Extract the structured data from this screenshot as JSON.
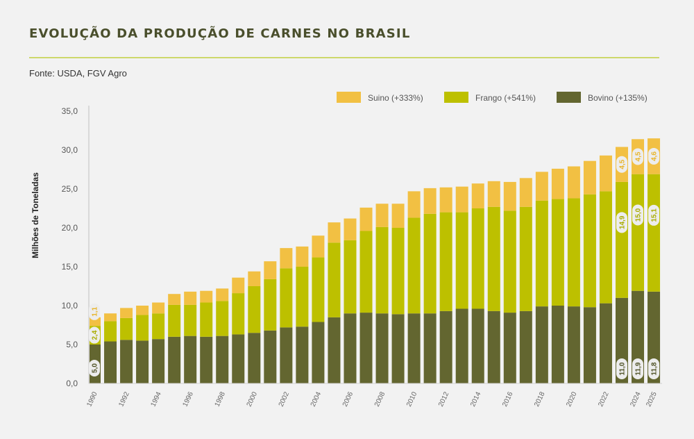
{
  "title": "EVOLUÇÃO DA PRODUÇÃO DE CARNES NO BRASIL",
  "source": "Fonte: USDA, FGV Agro",
  "chart_data": {
    "type": "bar",
    "stacked": true,
    "ylabel": "Milhões  de Toneladas",
    "xlabel": "",
    "ylim": [
      0,
      35
    ],
    "yticks": [
      "0,0",
      "5,0",
      "10,0",
      "15,0",
      "20,0",
      "25,0",
      "30,0",
      "35,0"
    ],
    "grid": false,
    "legend_position": "top-right",
    "categories": [
      1990,
      1991,
      1992,
      1993,
      1994,
      1995,
      1996,
      1997,
      1998,
      1999,
      2000,
      2001,
      2002,
      2003,
      2004,
      2005,
      2006,
      2007,
      2008,
      2009,
      2010,
      2011,
      2012,
      2013,
      2014,
      2015,
      2016,
      2017,
      2018,
      2019,
      2020,
      2021,
      2022,
      2023,
      2024,
      2025
    ],
    "xtick_labels": [
      "1990",
      "1992",
      "1994",
      "1996",
      "1998",
      "2000",
      "2002",
      "2004",
      "2006",
      "2008",
      "2010",
      "2012",
      "2014",
      "2016",
      "2018",
      "2020",
      "2022",
      "2024",
      "2025"
    ],
    "series": [
      {
        "name": "Bovino (+135%)",
        "color": "#636630",
        "label_color": "#4f5226",
        "values": [
          5.0,
          5.4,
          5.6,
          5.5,
          5.7,
          6.0,
          6.1,
          6.0,
          6.1,
          6.3,
          6.5,
          6.8,
          7.2,
          7.3,
          7.9,
          8.5,
          9.0,
          9.1,
          9.0,
          8.9,
          9.0,
          9.0,
          9.3,
          9.6,
          9.6,
          9.3,
          9.1,
          9.3,
          9.9,
          10.0,
          9.9,
          9.8,
          10.3,
          11.0,
          11.9,
          11.8
        ]
      },
      {
        "name": "Frango (+541%)",
        "color": "#bdc000",
        "label_color": "#a9ac00",
        "values": [
          2.4,
          2.6,
          2.8,
          3.3,
          3.3,
          4.1,
          4.0,
          4.4,
          4.5,
          5.3,
          6.0,
          6.6,
          7.6,
          7.7,
          8.3,
          9.6,
          9.4,
          10.5,
          11.1,
          11.1,
          12.3,
          12.8,
          12.7,
          12.4,
          12.9,
          13.4,
          13.1,
          13.4,
          13.6,
          13.7,
          13.9,
          14.5,
          14.4,
          14.9,
          15.0,
          15.1
        ]
      },
      {
        "name": "Suino (+333%)",
        "color": "#f2c043",
        "label_color": "#e8b52c",
        "values": [
          1.1,
          1.0,
          1.3,
          1.2,
          1.4,
          1.4,
          1.7,
          1.5,
          1.6,
          2.0,
          1.9,
          2.3,
          2.6,
          2.6,
          2.8,
          2.6,
          2.8,
          3.0,
          3.0,
          3.1,
          3.4,
          3.3,
          3.2,
          3.3,
          3.2,
          3.3,
          3.7,
          3.7,
          3.7,
          3.9,
          4.1,
          4.3,
          4.6,
          4.5,
          4.5,
          4.6
        ]
      }
    ],
    "legend_order": [
      "Suino (+333%)",
      "Frango (+541%)",
      "Bovino (+135%)"
    ],
    "data_labels": {
      "1990": [
        "5,0",
        "2,4",
        "1,1"
      ],
      "2023": [
        "11,0",
        "14,9",
        "4,5"
      ],
      "2024": [
        "11,9",
        "15,0",
        "4,5"
      ],
      "2025": [
        "11,8",
        "15,1",
        "4,6"
      ]
    }
  }
}
